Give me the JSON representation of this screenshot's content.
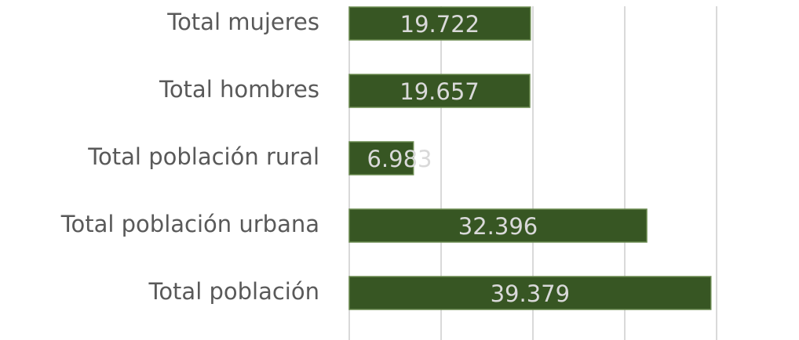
{
  "chart_data": {
    "type": "bar",
    "orientation": "horizontal",
    "categories": [
      "Total mujeres",
      "Total hombres",
      "Total población rural",
      "Total población urbana",
      "Total población"
    ],
    "values": [
      19722,
      19657,
      6983,
      32396,
      39379
    ],
    "value_labels": [
      "19.722",
      "19.657",
      "6.983",
      "32.396",
      "39.379"
    ],
    "color": "#375623",
    "xlim": [
      0,
      40000
    ],
    "xticks": [
      0,
      10000,
      20000,
      30000,
      40000
    ],
    "grid": true
  }
}
